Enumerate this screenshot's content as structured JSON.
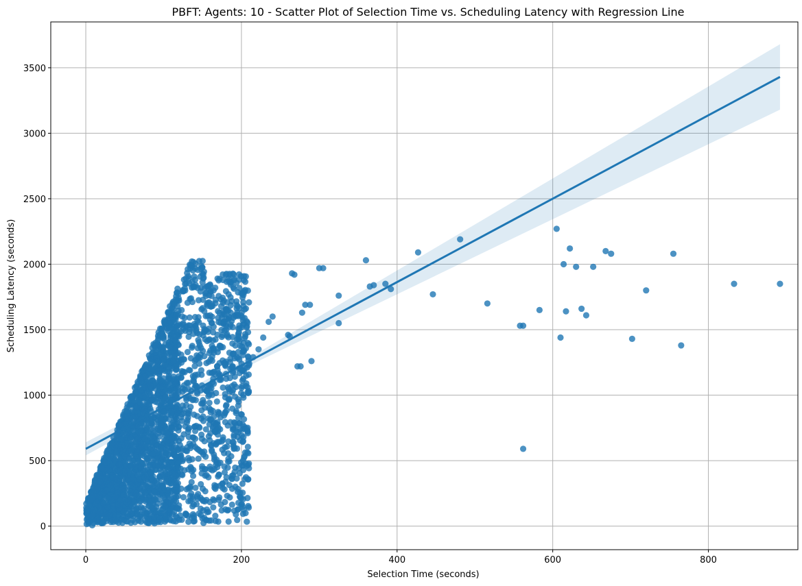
{
  "chart_data": {
    "type": "scatter",
    "title": "PBFT: Agents: 10 - Scatter Plot of Selection Time vs. Scheduling Latency with Regression Line",
    "xlabel": "Selection Time (seconds)",
    "ylabel": "Scheduling Latency (seconds)",
    "xlim": [
      -45,
      915
    ],
    "ylim": [
      -180,
      3850
    ],
    "xticks": [
      0,
      200,
      400,
      600,
      800
    ],
    "yticks": [
      0,
      500,
      1000,
      1500,
      2000,
      2500,
      3000,
      3500
    ],
    "grid": true,
    "point_color": "#1f77b4",
    "regression": {
      "x": [
        0,
        892
      ],
      "y": [
        590,
        3430
      ],
      "ci_band": {
        "x": [
          0,
          220,
          892
        ],
        "lower": [
          540,
          1255,
          3180
        ],
        "upper": [
          640,
          1320,
          3680
        ]
      }
    },
    "cluster": {
      "description_count": 3000,
      "x_range": [
        0,
        250
      ]
    },
    "outliers": [
      [
        210,
        1240
      ],
      [
        215,
        1290
      ],
      [
        222,
        1350
      ],
      [
        228,
        1440
      ],
      [
        235,
        1560
      ],
      [
        240,
        1600
      ],
      [
        260,
        1460
      ],
      [
        262,
        1450
      ],
      [
        265,
        1930
      ],
      [
        268,
        1920
      ],
      [
        272,
        1220
      ],
      [
        276,
        1220
      ],
      [
        278,
        1630
      ],
      [
        282,
        1690
      ],
      [
        288,
        1690
      ],
      [
        290,
        1260
      ],
      [
        300,
        1970
      ],
      [
        305,
        1970
      ],
      [
        325,
        1760
      ],
      [
        325,
        1550
      ],
      [
        360,
        2030
      ],
      [
        365,
        1830
      ],
      [
        370,
        1840
      ],
      [
        385,
        1850
      ],
      [
        392,
        1810
      ],
      [
        427,
        2090
      ],
      [
        446,
        1770
      ],
      [
        481,
        2190
      ],
      [
        516,
        1700
      ],
      [
        558,
        1530
      ],
      [
        562,
        1530
      ],
      [
        562,
        590
      ],
      [
        583,
        1650
      ],
      [
        605,
        2270
      ],
      [
        610,
        1440
      ],
      [
        614,
        2000
      ],
      [
        617,
        1640
      ],
      [
        622,
        2120
      ],
      [
        630,
        1980
      ],
      [
        652,
        1980
      ],
      [
        637,
        1660
      ],
      [
        643,
        1610
      ],
      [
        668,
        2100
      ],
      [
        675,
        2080
      ],
      [
        702,
        1430
      ],
      [
        720,
        1800
      ],
      [
        755,
        2080
      ],
      [
        765,
        1380
      ],
      [
        833,
        1850
      ],
      [
        892,
        1850
      ]
    ]
  }
}
